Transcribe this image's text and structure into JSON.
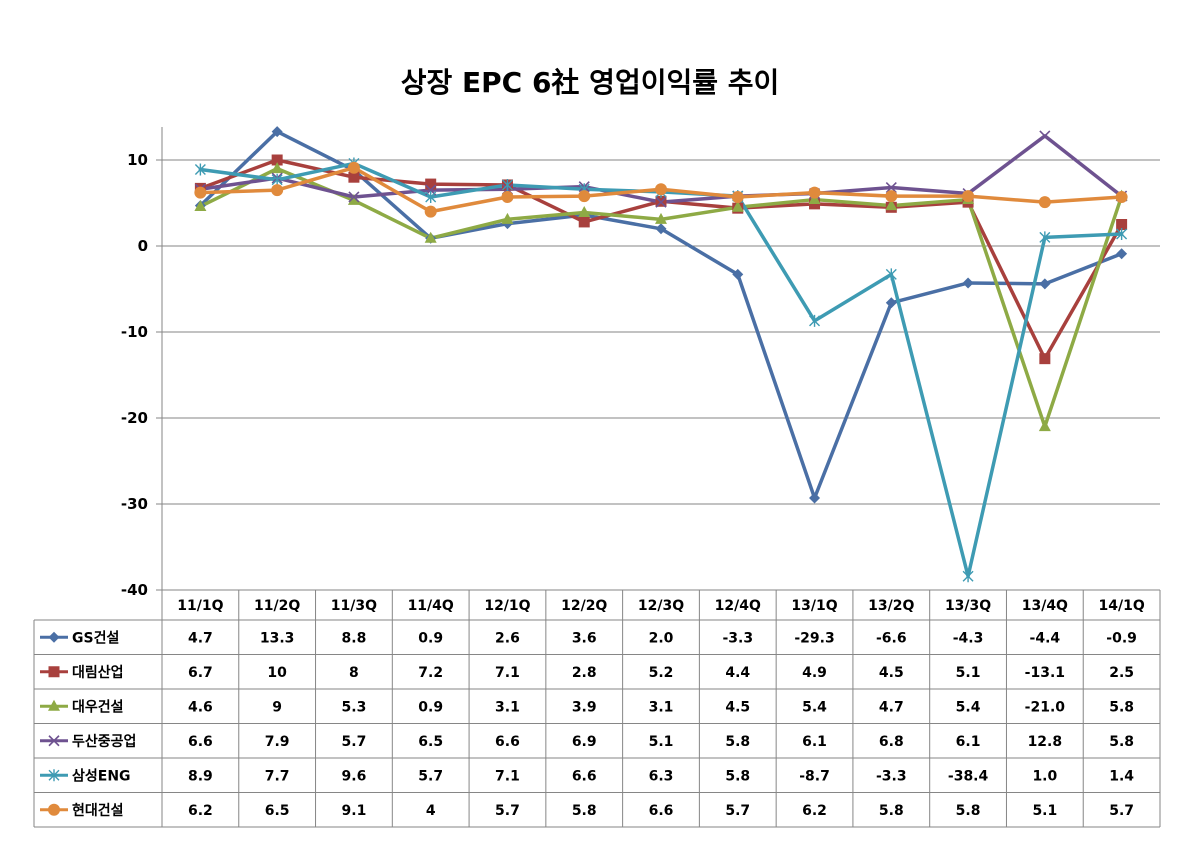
{
  "chart_data": {
    "type": "line",
    "title": "상장 EPC 6社 영업이익률 추이",
    "categories": [
      "11/1Q",
      "11/2Q",
      "11/3Q",
      "11/4Q",
      "12/1Q",
      "12/2Q",
      "12/3Q",
      "12/4Q",
      "13/1Q",
      "13/2Q",
      "13/3Q",
      "13/4Q",
      "14/1Q"
    ],
    "ylim": [
      -40,
      14
    ],
    "yticks": [
      10,
      0,
      -10,
      -20,
      -30,
      -40
    ],
    "grid": true,
    "legend": "data-table-below",
    "series": [
      {
        "name": "GS건설",
        "color": "#4A6FA5",
        "marker": "diamond",
        "values": [
          4.7,
          13.3,
          8.8,
          0.9,
          2.6,
          3.6,
          2.0,
          -3.3,
          -29.3,
          -6.6,
          -4.3,
          -4.4,
          -0.9
        ],
        "labels": [
          "4.7",
          "13.3",
          "8.8",
          "0.9",
          "2.6",
          "3.6",
          "2.0",
          "-3.3",
          "-29.3",
          "-6.6",
          "-4.3",
          "-4.4",
          "-0.9"
        ]
      },
      {
        "name": "대림산업",
        "color": "#A8403D",
        "marker": "square",
        "values": [
          6.7,
          10,
          8,
          7.2,
          7.1,
          2.8,
          5.2,
          4.4,
          4.9,
          4.5,
          5.1,
          -13.1,
          2.5
        ],
        "labels": [
          "6.7",
          "10",
          "8",
          "7.2",
          "7.1",
          "2.8",
          "5.2",
          "4.4",
          "4.9",
          "4.5",
          "5.1",
          "-13.1",
          "2.5"
        ]
      },
      {
        "name": "대우건설",
        "color": "#8EAA45",
        "marker": "triangle",
        "values": [
          4.6,
          9,
          5.3,
          0.9,
          3.1,
          3.9,
          3.1,
          4.5,
          5.4,
          4.7,
          5.4,
          -21.0,
          5.8
        ],
        "labels": [
          "4.6",
          "9",
          "5.3",
          "0.9",
          "3.1",
          "3.9",
          "3.1",
          "4.5",
          "5.4",
          "4.7",
          "5.4",
          "-21.0",
          "5.8"
        ]
      },
      {
        "name": "두산중공업",
        "color": "#6E5290",
        "marker": "x",
        "values": [
          6.6,
          7.9,
          5.7,
          6.5,
          6.6,
          6.9,
          5.1,
          5.8,
          6.1,
          6.8,
          6.1,
          12.8,
          5.8
        ],
        "labels": [
          "6.6",
          "7.9",
          "5.7",
          "6.5",
          "6.6",
          "6.9",
          "5.1",
          "5.8",
          "6.1",
          "6.8",
          "6.1",
          "12.8",
          "5.8"
        ]
      },
      {
        "name": "삼성ENG",
        "color": "#3E9BB3",
        "marker": "star",
        "values": [
          8.9,
          7.7,
          9.6,
          5.7,
          7.1,
          6.6,
          6.3,
          5.8,
          -8.7,
          -3.3,
          -38.4,
          1.0,
          1.4
        ],
        "labels": [
          "8.9",
          "7.7",
          "9.6",
          "5.7",
          "7.1",
          "6.6",
          "6.3",
          "5.8",
          "-8.7",
          "-3.3",
          "-38.4",
          "1.0",
          "1.4"
        ]
      },
      {
        "name": "현대건설",
        "color": "#E08A3C",
        "marker": "circle",
        "values": [
          6.2,
          6.5,
          9.1,
          4,
          5.7,
          5.8,
          6.6,
          5.7,
          6.2,
          5.8,
          5.8,
          5.1,
          5.7
        ],
        "labels": [
          "6.2",
          "6.5",
          "9.1",
          "4",
          "5.7",
          "5.8",
          "6.6",
          "5.7",
          "6.2",
          "5.8",
          "5.8",
          "5.1",
          "5.7"
        ]
      }
    ]
  }
}
